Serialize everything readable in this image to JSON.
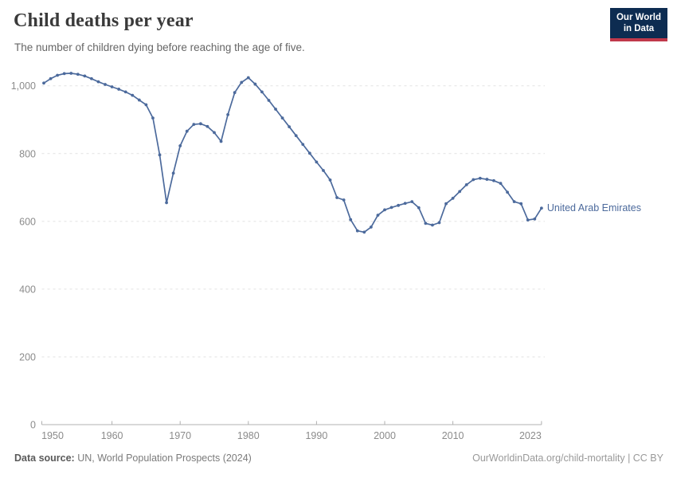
{
  "header": {
    "title": "Child deaths per year",
    "subtitle": "The number of children dying before reaching the age of five.",
    "logo": {
      "line1": "Our World",
      "line2": "in Data"
    }
  },
  "footer": {
    "source_label": "Data source:",
    "source_text": " UN, World Population Prospects (2024)",
    "credit": "OurWorldinData.org/child-mortality | CC BY"
  },
  "colors": {
    "line": "#4c6a9c",
    "entity_label": "#4c6a9c",
    "grid": "#e2e2e2",
    "axis": "#b0b0b0",
    "tick_label": "#8b8b8b",
    "logo_bg": "#0d2c51",
    "logo_red": "#c0394b"
  },
  "chart_data": {
    "type": "line",
    "title": "Child deaths per year",
    "subtitle": "The number of children dying before reaching the age of five.",
    "xlabel": "",
    "ylabel": "",
    "grid": true,
    "legend_position": "inline-right-of-line",
    "ylim": [
      0,
      1050
    ],
    "xlim": [
      1950,
      2023
    ],
    "yticks": [
      0,
      200,
      400,
      600,
      800,
      1000
    ],
    "ytick_labels": [
      "0",
      "200",
      "400",
      "600",
      "800",
      "1,000"
    ],
    "xticks": [
      1950,
      1960,
      1970,
      1980,
      1990,
      2000,
      2010,
      2023
    ],
    "xtick_labels": [
      "1950",
      "1960",
      "1970",
      "1980",
      "1990",
      "2000",
      "2010",
      "2023"
    ],
    "x": [
      1950,
      1951,
      1952,
      1953,
      1954,
      1955,
      1956,
      1957,
      1958,
      1959,
      1960,
      1961,
      1962,
      1963,
      1964,
      1965,
      1966,
      1967,
      1968,
      1969,
      1970,
      1971,
      1972,
      1973,
      1974,
      1975,
      1976,
      1977,
      1978,
      1979,
      1980,
      1981,
      1982,
      1983,
      1984,
      1985,
      1986,
      1987,
      1988,
      1989,
      1990,
      1991,
      1992,
      1993,
      1994,
      1995,
      1996,
      1997,
      1998,
      1999,
      2000,
      2001,
      2002,
      2003,
      2004,
      2005,
      2006,
      2007,
      2008,
      2009,
      2010,
      2011,
      2012,
      2013,
      2014,
      2015,
      2016,
      2017,
      2018,
      2019,
      2020,
      2021,
      2022,
      2023
    ],
    "series": [
      {
        "name": "United Arab Emirates",
        "values": [
          1008,
          1021,
          1031,
          1036,
          1037,
          1034,
          1029,
          1021,
          1012,
          1004,
          997,
          990,
          982,
          972,
          958,
          944,
          905,
          796,
          655,
          742,
          823,
          866,
          886,
          888,
          880,
          862,
          836,
          915,
          980,
          1010,
          1024,
          1005,
          982,
          957,
          931,
          905,
          879,
          853,
          827,
          801,
          775,
          750,
          722,
          670,
          663,
          605,
          572,
          568,
          583,
          618,
          634,
          641,
          647,
          653,
          658,
          640,
          594,
          589,
          596,
          652,
          668,
          688,
          708,
          723,
          727,
          724,
          720,
          712,
          686,
          658,
          652,
          604,
          607,
          639
        ]
      }
    ]
  }
}
